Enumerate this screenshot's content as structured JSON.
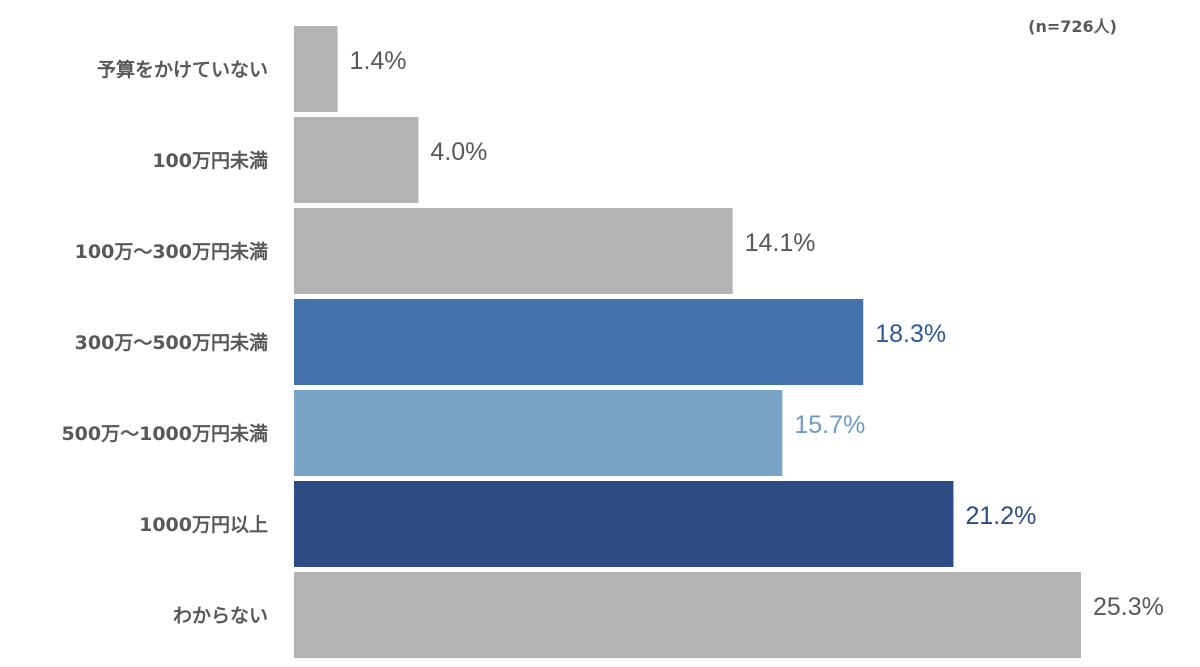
{
  "chart_data": {
    "type": "bar",
    "orientation": "horizontal",
    "note": "(n=726人)",
    "categories": [
      "予算をかけていない",
      "100万円未満",
      "100万～300万円未満",
      "300万～500万円未満",
      "500万～1000万円未満",
      "1000万円以上",
      "わからない"
    ],
    "values": [
      1.4,
      4.0,
      14.1,
      18.3,
      15.7,
      21.2,
      25.3
    ],
    "value_labels": [
      "1.4%",
      "4.0%",
      "14.1%",
      "18.3%",
      "15.7%",
      "21.2%",
      "25.3%"
    ],
    "bar_colors": [
      "#b3b3b3",
      "#b3b3b3",
      "#b3b3b3",
      "#4472ad",
      "#7aa3c8",
      "#2e4c84",
      "#b3b3b3"
    ],
    "label_colors": [
      "#595959",
      "#595959",
      "#595959",
      "#2e5a9a",
      "#6f9bc4",
      "#2e4c84",
      "#595959"
    ],
    "xlim": [
      0,
      25.3
    ],
    "grid": false,
    "legend": "none"
  }
}
